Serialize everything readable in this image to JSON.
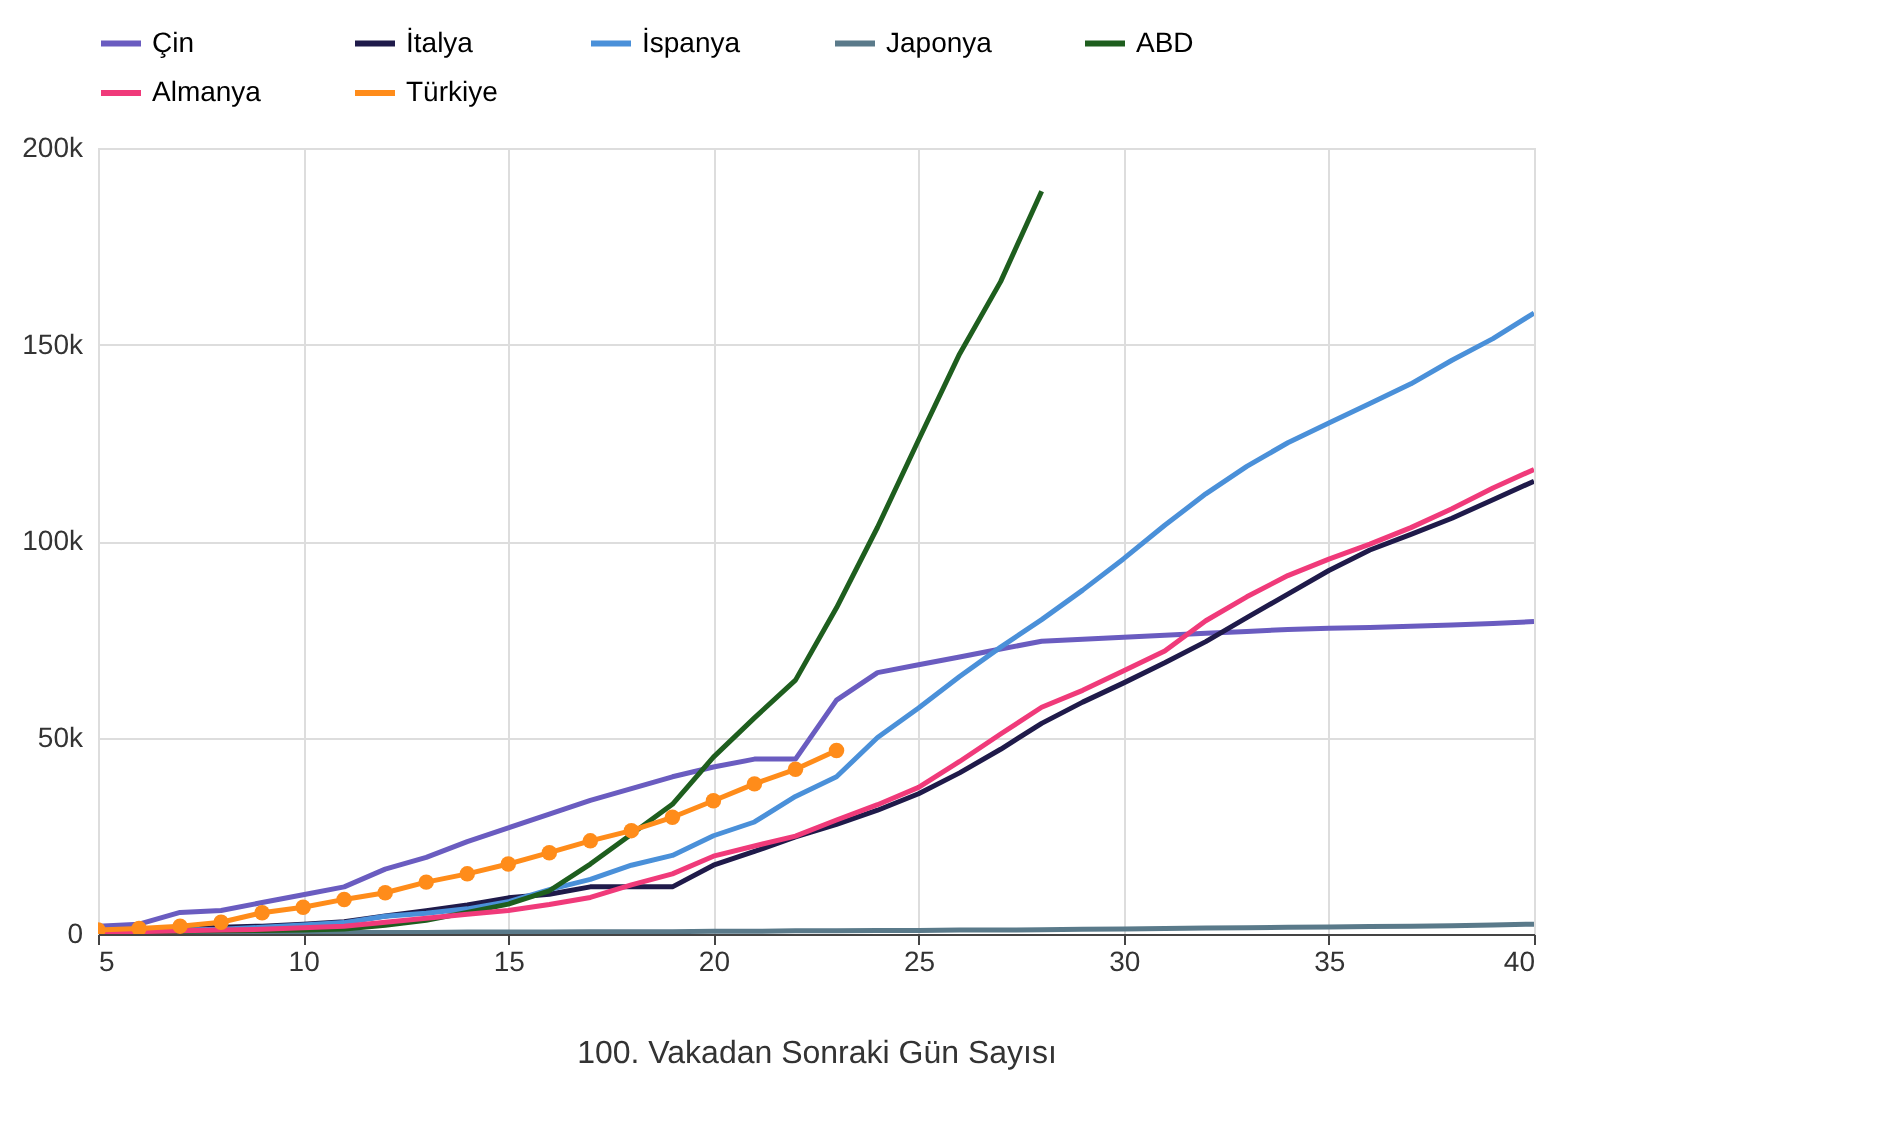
{
  "chart_data": {
    "type": "line",
    "xlabel": "100. Vakadan Sonraki Gün Sayısı",
    "x": [
      5,
      6,
      7,
      8,
      9,
      10,
      11,
      12,
      13,
      14,
      15,
      16,
      17,
      18,
      19,
      20,
      21,
      22,
      23,
      24,
      25,
      26,
      27,
      28,
      29,
      30,
      31,
      32,
      33,
      34,
      35,
      36,
      37,
      38,
      39,
      40
    ],
    "series": [
      {
        "name": "Çin",
        "color": "#6a5cc0",
        "values": [
          2,
          2.5,
          5.5,
          6,
          8,
          10,
          12,
          16.5,
          19.5,
          23.5,
          27,
          30.5,
          34,
          37,
          40,
          42.5,
          44.5,
          44.5,
          59.5,
          66.5,
          68.5,
          70.5,
          72.5,
          74.5,
          75,
          75.5,
          76,
          76.5,
          77,
          77.5,
          77.8,
          78,
          78.3,
          78.6,
          79,
          79.5
        ]
      },
      {
        "name": "İtalya",
        "color": "#1f1a4a",
        "values": [
          0.5,
          0.9,
          1.1,
          1.7,
          2,
          2.5,
          3.1,
          4.6,
          5.9,
          7.4,
          9.2,
          10.1,
          12,
          12,
          12,
          17.5,
          21,
          24.7,
          27.9,
          31.5,
          35.7,
          41,
          47,
          53.6,
          59,
          63.9,
          69,
          74.4,
          80.5,
          86.5,
          92.5,
          97.7,
          101.7,
          105.8,
          110.5,
          115.2
        ]
      },
      {
        "name": "İspanya",
        "color": "#4a90d9",
        "values": [
          0.5,
          0.7,
          1,
          1.2,
          1.7,
          2.3,
          2.9,
          4.5,
          5.3,
          6.4,
          8.2,
          11.3,
          13.9,
          17.5,
          20,
          25,
          28.5,
          35,
          40,
          50,
          57.5,
          65.5,
          73,
          80,
          87.5,
          95.5,
          104,
          112,
          119,
          125,
          130,
          135,
          140,
          146,
          151.5,
          158
        ]
      },
      {
        "name": "Japonya",
        "color": "#5a7a8a",
        "values": [
          0.2,
          0.2,
          0.3,
          0.3,
          0.3,
          0.3,
          0.4,
          0.4,
          0.4,
          0.5,
          0.5,
          0.5,
          0.6,
          0.6,
          0.6,
          0.7,
          0.7,
          0.8,
          0.8,
          0.9,
          0.9,
          1,
          1,
          1.1,
          1.2,
          1.3,
          1.4,
          1.5,
          1.6,
          1.7,
          1.8,
          1.9,
          2,
          2.1,
          2.3,
          2.5
        ]
      },
      {
        "name": "ABD",
        "color": "#1e5e1e",
        "values": [
          0.5,
          0.6,
          0.7,
          0.8,
          0.9,
          1,
          1.3,
          2.2,
          3.5,
          5.5,
          7.6,
          11,
          17.8,
          25.4,
          33,
          45,
          55,
          64.6,
          83,
          103.5,
          125.7,
          147.6,
          166,
          189,
          null,
          null,
          null,
          null,
          null,
          null,
          null,
          null,
          null,
          null,
          null,
          null
        ]
      },
      {
        "name": "Almanya",
        "color": "#f03a7a",
        "values": [
          0.4,
          0.6,
          0.8,
          1,
          1.2,
          1.6,
          2,
          3,
          4,
          5,
          6,
          7.5,
          9.3,
          12.5,
          15.3,
          19.8,
          22.4,
          24.9,
          29,
          32.9,
          37.3,
          43.9,
          50.9,
          57.7,
          62,
          67,
          72,
          79.7,
          85.8,
          91.2,
          95.4,
          99.2,
          103.4,
          108.2,
          113.5,
          118.2
        ]
      },
      {
        "name": "Türkiye",
        "color": "#ff8c1a",
        "marker": "circle",
        "values": [
          1,
          1.4,
          2,
          3,
          5.4,
          6.8,
          8.8,
          10.5,
          13.2,
          15.3,
          17.8,
          20.7,
          23.7,
          26.3,
          29.7,
          33.9,
          38.2,
          41.9,
          46.7,
          null,
          null,
          null,
          null,
          null,
          null,
          null,
          null,
          null,
          null,
          null,
          null,
          null,
          null,
          null,
          null,
          null
        ]
      }
    ],
    "xlim": [
      5,
      40
    ],
    "xticks": [
      5,
      10,
      15,
      20,
      25,
      30,
      35,
      40
    ],
    "ylim": [
      0,
      200
    ],
    "yticks": [
      {
        "value": 0,
        "label": "0"
      },
      {
        "value": 50,
        "label": "50k"
      },
      {
        "value": 100,
        "label": "100k"
      },
      {
        "value": 150,
        "label": "150k"
      },
      {
        "value": 200,
        "label": "200k"
      }
    ],
    "grid": true,
    "legend": "top",
    "marker": "none",
    "line_style": "solid"
  }
}
